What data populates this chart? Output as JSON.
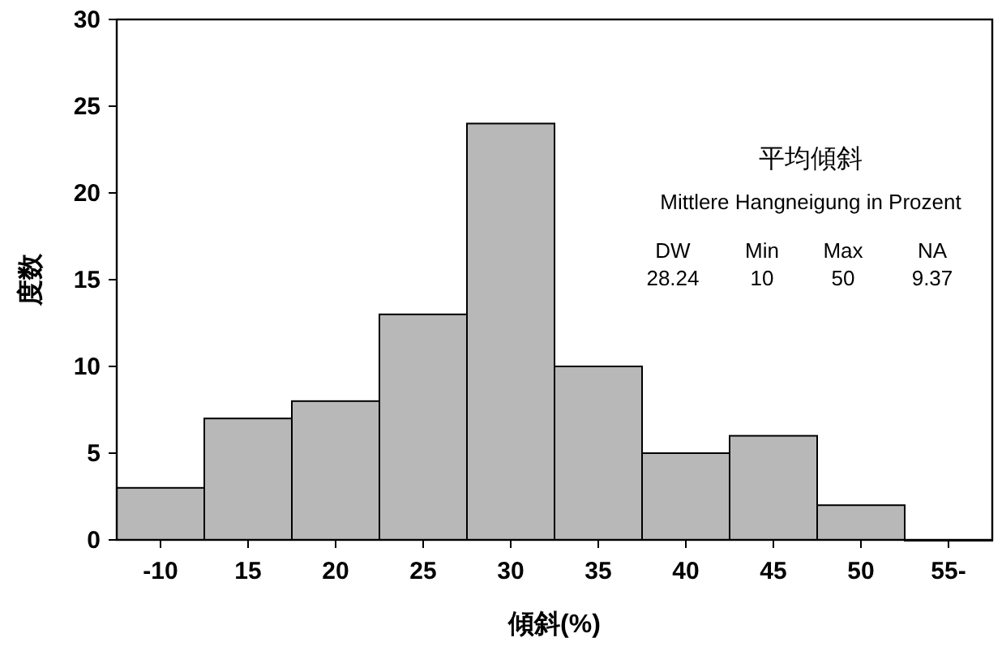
{
  "chart_data": {
    "type": "bar",
    "xlabel": "傾斜(%)",
    "ylabel": "度数",
    "categories": [
      "-10",
      "15",
      "20",
      "25",
      "30",
      "35",
      "40",
      "45",
      "50",
      "55-"
    ],
    "values": [
      3,
      7,
      8,
      13,
      24,
      10,
      5,
      6,
      2,
      0
    ],
    "color": "#b8b8b8",
    "ylim": [
      0,
      30
    ],
    "yticks": [
      0,
      5,
      10,
      15,
      20,
      25,
      30
    ],
    "annotations": [
      "平均傾斜",
      "Mittlere Hangneigung in Prozent",
      "DW",
      "Min",
      "Max",
      "NA",
      "28.24",
      "10",
      "50",
      "9.37"
    ]
  }
}
